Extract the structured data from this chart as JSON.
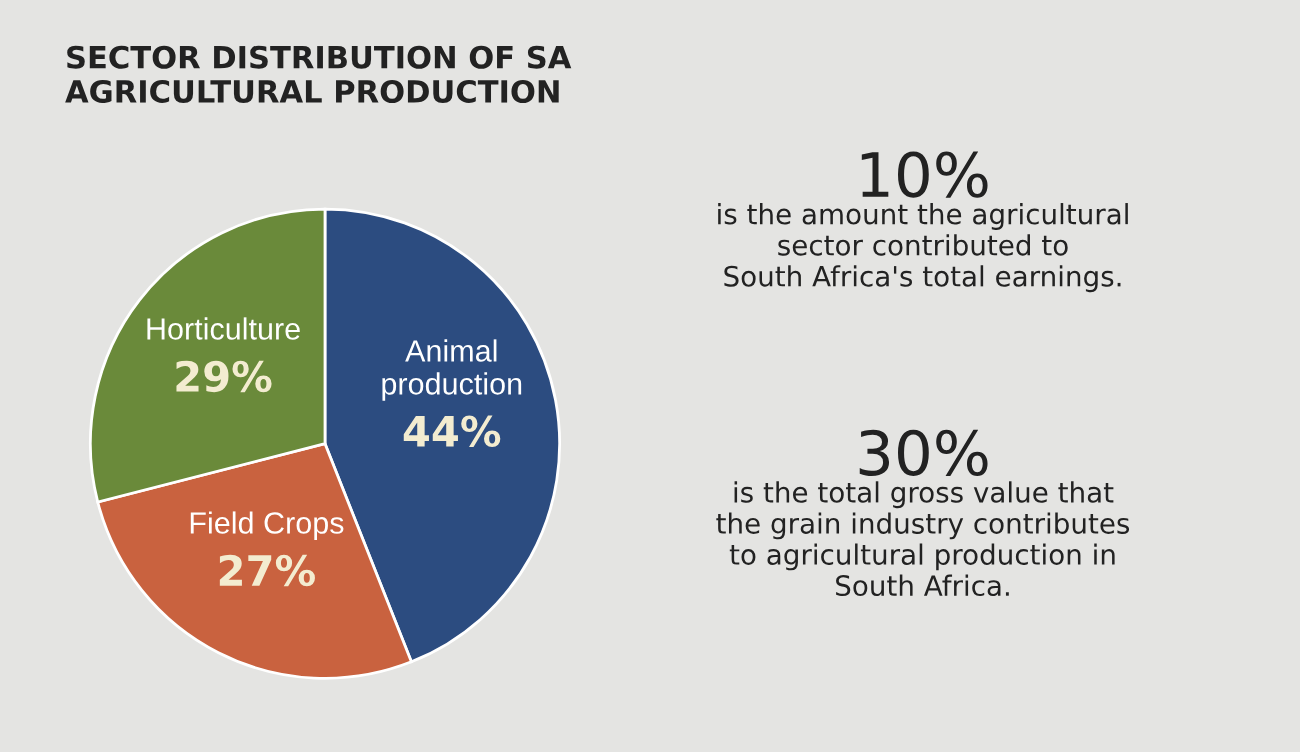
{
  "chart_data": {
    "type": "pie",
    "title": "SECTOR DISTRIBUTION OF SA\nAGRICULTURAL PRODUCTION",
    "categories": [
      "Animal\nproduction",
      "Field Crops",
      "Horticulture"
    ],
    "values": [
      44,
      27,
      29
    ],
    "colors": [
      "#2c4c80",
      "#c9623f",
      "#6a8a3a"
    ],
    "value_labels": [
      "44%",
      "27%",
      "29%"
    ],
    "legend": false,
    "annotations": [
      "10%",
      "is the amount the agricultural\nsector contributed to\nSouth Africa's total earnings.",
      "30%",
      "is the total gross value that\nthe grain industry contributes\nto agricultural production in\nSouth Africa."
    ]
  }
}
